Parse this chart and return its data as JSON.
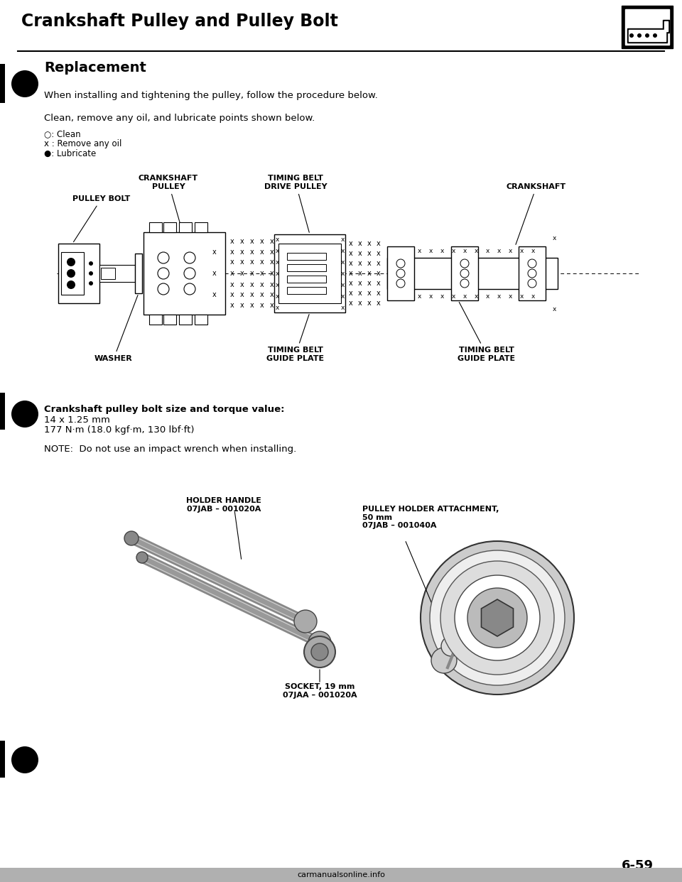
{
  "title": "Crankshaft Pulley and Pulley Bolt",
  "section": "Replacement",
  "intro_text1": "When installing and tightening the pulley, follow the procedure below.",
  "intro_text2": "Clean, remove any oil, and lubricate points shown below.",
  "legend_lines": [
    "○: Clean",
    "x : Remove any oil",
    "●: Lubricate"
  ],
  "labels": {
    "pulley_bolt": "PULLEY BOLT",
    "crankshaft_pulley": "CRANKSHAFT\nPULLEY",
    "timing_belt_drive_pulley": "TIMING BELT\nDRIVE PULLEY",
    "crankshaft": "CRANKSHAFT",
    "washer": "WASHER",
    "timing_belt_guide_plate1": "TIMING BELT\nGUIDE PLATE",
    "timing_belt_guide_plate2": "TIMING BELT\nGUIDE PLATE"
  },
  "bolt_info_title": "Crankshaft pulley bolt size and torque value:",
  "bolt_info_line1": "14 x 1.25 mm",
  "bolt_info_line2": "177 N·m (18.0 kgf·m, 130 lbf·ft)",
  "note": "NOTE:  Do not use an impact wrench when installing.",
  "tool_labels": {
    "holder_handle": "HOLDER HANDLE\n07JAB – 001020A",
    "pulley_holder": "PULLEY HOLDER ATTACHMENT,\n50 mm\n07JAB – 001040A",
    "socket": "SOCKET, 19 mm\n07JAA – 001020A"
  },
  "page_num": "6-59",
  "bg_color": "#ffffff",
  "text_color": "#000000",
  "watermark": "carmanualsonline.info",
  "watermark_bg": "#b0b0b0"
}
